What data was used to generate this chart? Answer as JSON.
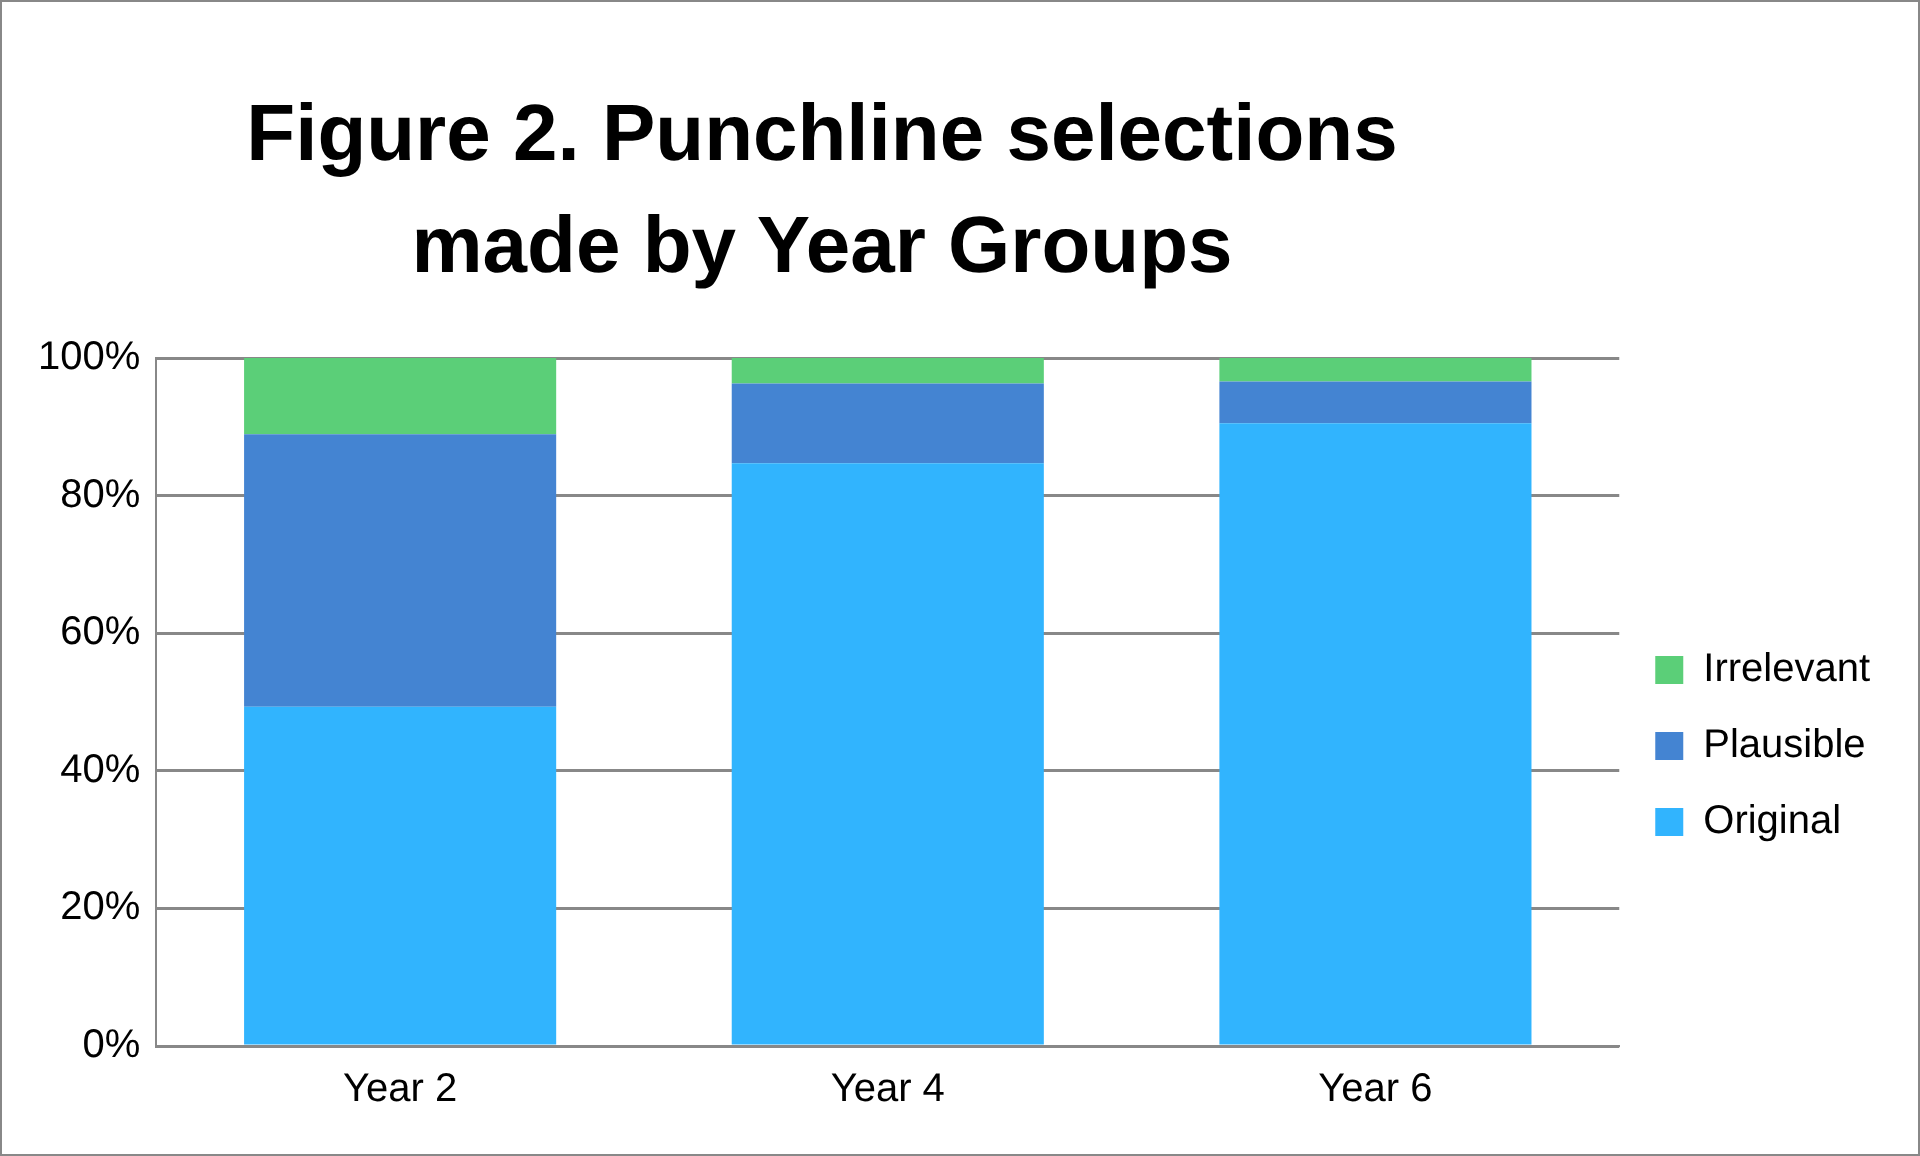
{
  "chart_data": {
    "type": "bar",
    "title": "Figure 2. Punchline selections made by Year Groups",
    "categories": [
      "Year 2",
      "Year 4",
      "Year 6"
    ],
    "stacked": true,
    "series": [
      {
        "name": "Original",
        "color": "#31b4fe",
        "values": [
          49.3,
          84.7,
          90.5
        ]
      },
      {
        "name": "Plausible",
        "color": "#4484d2",
        "values": [
          39.6,
          11.6,
          6.1
        ]
      },
      {
        "name": "Irrelevant",
        "color": "#5bcf78",
        "values": [
          11.1,
          3.7,
          3.4
        ]
      }
    ],
    "ylim": [
      0,
      100
    ],
    "yticks": [
      {
        "value": 0,
        "label": "0%"
      },
      {
        "value": 20,
        "label": "20%"
      },
      {
        "value": 40,
        "label": "40%"
      },
      {
        "value": 60,
        "label": "60%"
      },
      {
        "value": 80,
        "label": "80%"
      },
      {
        "value": 100,
        "label": "100%"
      }
    ],
    "grid": "y",
    "legend": "right"
  }
}
